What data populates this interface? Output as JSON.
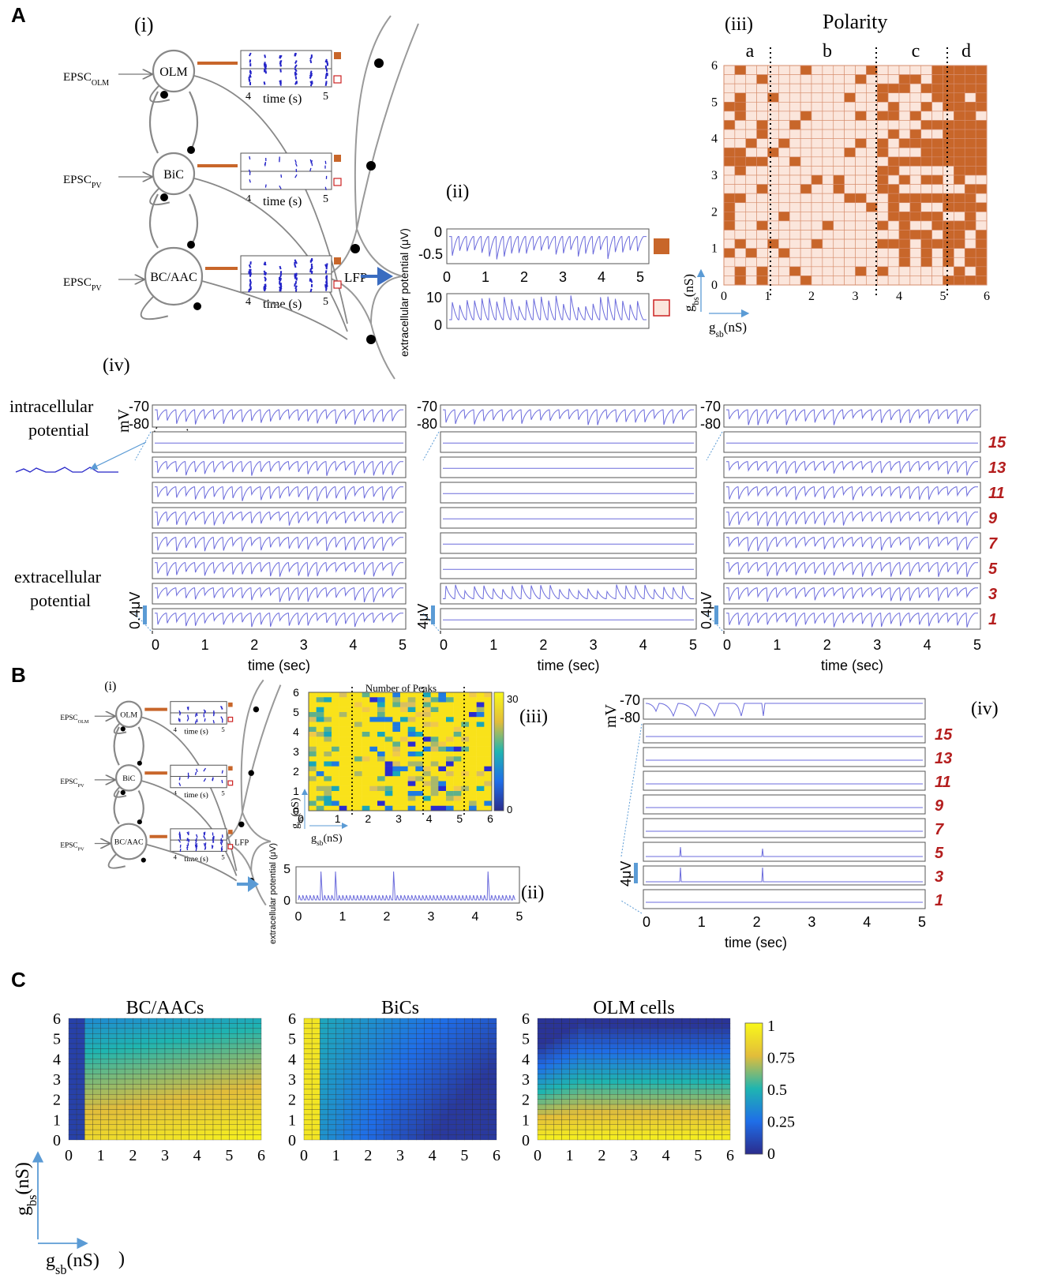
{
  "panels": {
    "A": "A",
    "B": "B",
    "C": "C"
  },
  "colors": {
    "trace": "#6b6bdc",
    "raster": "#2424c8",
    "orange": "#c8662a",
    "cell_light": "#fbe6dc",
    "cell_grid": "#d68c6c",
    "arrow_blue": "#3a6cc0",
    "red_label": "#b41e1e"
  },
  "A": {
    "i": {
      "label": "(i)",
      "cells": [
        {
          "name": "OLM",
          "input": "EPSC",
          "input_sub": "OLM"
        },
        {
          "name": "BiC",
          "input": "EPSC",
          "input_sub": "PV"
        },
        {
          "name": "BC/AAC",
          "input": "EPSC",
          "input_sub": "PV"
        }
      ],
      "raster_xlabel": "time (s)",
      "raster_ticks": [
        "4",
        "5"
      ],
      "lfp": "LFP"
    },
    "ii": {
      "label": "(ii)",
      "ylabel": "extracellular potential (μV)",
      "top_yticks": [
        "0",
        "-0.5"
      ],
      "bottom_yticks": [
        "10",
        "0"
      ],
      "xticks": [
        "0",
        "1",
        "2",
        "3",
        "4",
        "5"
      ]
    },
    "iii": {
      "label": "(iii)",
      "title": "Polarity",
      "regions": [
        "a",
        "b",
        "c",
        "d"
      ],
      "xticks": [
        "0",
        "1",
        "2",
        "3",
        "4",
        "5",
        "6"
      ],
      "yticks": [
        "0",
        "1",
        "2",
        "3",
        "4",
        "5",
        "6"
      ],
      "ylabel": "g",
      "ylabel_sub": "bs",
      "ylabel_unit": "(nS)",
      "xlabel": "g",
      "xlabel_sub": "sb",
      "xlabel_unit": "(nS)"
    },
    "iv": {
      "label": "(iv)",
      "intracellular": [
        "intracellular",
        "potential"
      ],
      "extracellular": [
        "extracellular",
        "potential"
      ],
      "mv_unit": "mV",
      "mv_ticks": [
        "-70",
        "-80"
      ],
      "scales": [
        "0.4μV",
        "4μV",
        "0.4μV"
      ],
      "xlabel": "time (sec)",
      "xticks": [
        "0",
        "1",
        "2",
        "3",
        "4",
        "5"
      ],
      "layers": [
        "15",
        "13",
        "11",
        "9",
        "7",
        "5",
        "3",
        "1"
      ]
    }
  },
  "B": {
    "i": {
      "label": "(i)",
      "cells": [
        {
          "name": "OLM",
          "input": "EPSC",
          "input_sub": "OLM"
        },
        {
          "name": "BiC",
          "input": "EPSC",
          "input_sub": "PV"
        },
        {
          "name": "BC/AAC",
          "input": "EPSC",
          "input_sub": "PV"
        }
      ],
      "raster_xlabel": "time (s)",
      "raster_ticks": [
        "4",
        "5"
      ],
      "lfp": "LFP"
    },
    "ii": {
      "label": "(ii)",
      "ylabel": "extracellular potential (μV)",
      "yticks": [
        "5",
        "0"
      ],
      "xticks": [
        "0",
        "1",
        "2",
        "3",
        "4",
        "5"
      ]
    },
    "iii": {
      "label": "(iii)",
      "title": "Number of Peaks",
      "colorbar_ticks": [
        "30",
        "0"
      ],
      "xticks": [
        "0",
        "1",
        "2",
        "3",
        "4",
        "5",
        "6"
      ],
      "yticks": [
        "0",
        "1",
        "2",
        "3",
        "4",
        "5",
        "6"
      ],
      "ylabel": "g",
      "ylabel_sub": "bs",
      "ylabel_unit": "(nS)",
      "xlabel": "g",
      "xlabel_sub": "sb",
      "xlabel_unit": "(nS)"
    },
    "iv": {
      "label": "(iv)",
      "mv_unit": "mV",
      "mv_ticks": [
        "-70",
        "-80"
      ],
      "scale": "4μV",
      "xlabel": "time (sec)",
      "xticks": [
        "0",
        "1",
        "2",
        "3",
        "4",
        "5"
      ],
      "layers": [
        "15",
        "13",
        "11",
        "9",
        "7",
        "5",
        "3",
        "1"
      ]
    }
  },
  "C": {
    "maps": [
      {
        "title": "BC/AACs",
        "pattern": "bc"
      },
      {
        "title": "BiCs",
        "pattern": "bic"
      },
      {
        "title": "OLM cells",
        "pattern": "olm"
      }
    ],
    "xticks": [
      "0",
      "1",
      "2",
      "3",
      "4",
      "5",
      "6"
    ],
    "yticks": [
      "0",
      "1",
      "2",
      "3",
      "4",
      "5",
      "6"
    ],
    "colorbar_ticks": [
      "1",
      "0.75",
      "0.5",
      "0.25",
      "0"
    ],
    "ylabel": "g",
    "ylabel_sub": "bs",
    "ylabel_unit": "(nS)",
    "xlabel": "g",
    "xlabel_sub": "sb",
    "xlabel_unit": "(nS)",
    "trailing": ")"
  }
}
